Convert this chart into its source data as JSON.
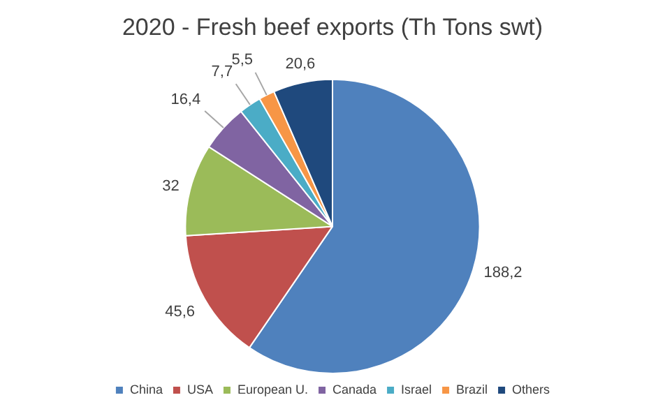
{
  "chart_data": {
    "type": "pie",
    "title": "2020 - Fresh beef exports (Th Tons swt)",
    "categories": [
      "China",
      "USA",
      "European U.",
      "Canada",
      "Israel",
      "Brazil",
      "Others"
    ],
    "values": [
      188.2,
      45.6,
      32,
      16.4,
      7.7,
      5.5,
      20.6
    ],
    "value_labels": [
      "188,2",
      "45,6",
      "32",
      "16,4",
      "7,7",
      "5,5",
      "20,6"
    ],
    "colors": [
      "#4f81bd",
      "#c0504d",
      "#9bbb59",
      "#8064a2",
      "#4bacc6",
      "#f79646",
      "#1f497d"
    ],
    "legend": "bottom"
  }
}
